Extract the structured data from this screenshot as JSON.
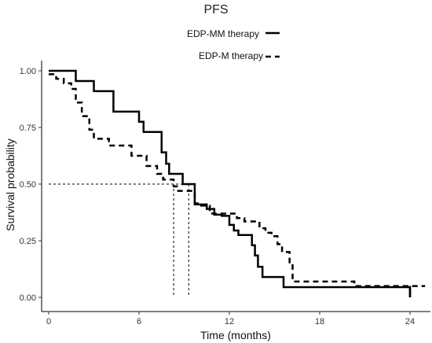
{
  "chart_data": {
    "type": "line",
    "title": "PFS",
    "xlabel": "Time (months)",
    "ylabel": "Survival probability",
    "xlim": [
      0,
      24
    ],
    "ylim": [
      0,
      1
    ],
    "x_ticks": [
      "0",
      "6",
      "12",
      "18",
      "24"
    ],
    "y_ticks": [
      "0.00",
      "0.25",
      "0.50",
      "0.75",
      "1.00"
    ],
    "grid": false,
    "legend": "top-center",
    "series": [
      {
        "name": "EDP-MM therapy",
        "style": "solid",
        "color": "#000000",
        "steps": [
          [
            0,
            1.0
          ],
          [
            1.8,
            0.955
          ],
          [
            3.0,
            0.91
          ],
          [
            4.3,
            0.82
          ],
          [
            6.0,
            0.775
          ],
          [
            6.3,
            0.73
          ],
          [
            7.5,
            0.64
          ],
          [
            7.8,
            0.59
          ],
          [
            8.0,
            0.545
          ],
          [
            8.9,
            0.5
          ],
          [
            9.7,
            0.41
          ],
          [
            10.5,
            0.39
          ],
          [
            11.0,
            0.365
          ],
          [
            11.5,
            0.36
          ],
          [
            12.0,
            0.32
          ],
          [
            12.3,
            0.295
          ],
          [
            12.6,
            0.275
          ],
          [
            13.5,
            0.23
          ],
          [
            13.7,
            0.185
          ],
          [
            13.9,
            0.135
          ],
          [
            14.2,
            0.09
          ],
          [
            15.6,
            0.045
          ],
          [
            24.0,
            0.0
          ]
        ],
        "end_x": 24.0
      },
      {
        "name": "EDP-M therapy",
        "style": "dashed",
        "color": "#000000",
        "steps": [
          [
            0,
            0.985
          ],
          [
            0.5,
            0.965
          ],
          [
            1.0,
            0.945
          ],
          [
            1.5,
            0.92
          ],
          [
            1.8,
            0.86
          ],
          [
            2.2,
            0.8
          ],
          [
            2.7,
            0.74
          ],
          [
            3.0,
            0.7
          ],
          [
            4.0,
            0.67
          ],
          [
            5.5,
            0.625
          ],
          [
            6.5,
            0.58
          ],
          [
            7.2,
            0.545
          ],
          [
            7.6,
            0.52
          ],
          [
            8.3,
            0.49
          ],
          [
            8.6,
            0.47
          ],
          [
            9.7,
            0.415
          ],
          [
            10.0,
            0.405
          ],
          [
            10.7,
            0.37
          ],
          [
            12.5,
            0.35
          ],
          [
            13.0,
            0.335
          ],
          [
            14.0,
            0.305
          ],
          [
            14.4,
            0.285
          ],
          [
            14.8,
            0.27
          ],
          [
            15.2,
            0.235
          ],
          [
            15.5,
            0.2
          ],
          [
            16.0,
            0.155
          ],
          [
            16.2,
            0.07
          ],
          [
            20.3,
            0.05
          ]
        ],
        "end_x": 25.0
      }
    ],
    "median_reference": {
      "y": 0.5,
      "x_values": [
        8.3,
        9.3
      ]
    }
  }
}
